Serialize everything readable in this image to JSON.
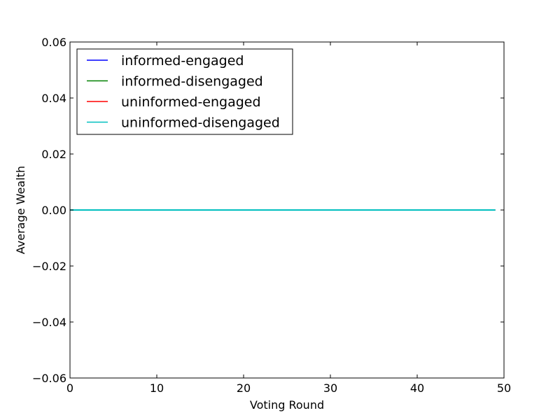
{
  "chart_data": {
    "type": "line",
    "title": "",
    "xlabel": "Voting Round",
    "ylabel": "Average Wealth",
    "xlim": [
      0,
      50
    ],
    "ylim": [
      -0.06,
      0.06
    ],
    "xticks": [
      0,
      10,
      20,
      30,
      40,
      50
    ],
    "xtick_labels": [
      "0",
      "10",
      "20",
      "30",
      "40",
      "50"
    ],
    "yticks": [
      -0.06,
      -0.04,
      -0.02,
      0.0,
      0.02,
      0.04,
      0.06
    ],
    "ytick_labels": [
      "−0.06",
      "−0.04",
      "−0.02",
      "0.00",
      "0.02",
      "0.04",
      "0.06"
    ],
    "grid": false,
    "legend_position": "top-left",
    "x": [
      0,
      1,
      2,
      3,
      4,
      5,
      6,
      7,
      8,
      9,
      10,
      11,
      12,
      13,
      14,
      15,
      16,
      17,
      18,
      19,
      20,
      21,
      22,
      23,
      24,
      25,
      26,
      27,
      28,
      29,
      30,
      31,
      32,
      33,
      34,
      35,
      36,
      37,
      38,
      39,
      40,
      41,
      42,
      43,
      44,
      45,
      46,
      47,
      48,
      49
    ],
    "series": [
      {
        "name": "informed-engaged",
        "color": "#0000ff",
        "values": [
          0,
          0,
          0,
          0,
          0,
          0,
          0,
          0,
          0,
          0,
          0,
          0,
          0,
          0,
          0,
          0,
          0,
          0,
          0,
          0,
          0,
          0,
          0,
          0,
          0,
          0,
          0,
          0,
          0,
          0,
          0,
          0,
          0,
          0,
          0,
          0,
          0,
          0,
          0,
          0,
          0,
          0,
          0,
          0,
          0,
          0,
          0,
          0,
          0,
          0
        ]
      },
      {
        "name": "informed-disengaged",
        "color": "#008000",
        "values": [
          0,
          0,
          0,
          0,
          0,
          0,
          0,
          0,
          0,
          0,
          0,
          0,
          0,
          0,
          0,
          0,
          0,
          0,
          0,
          0,
          0,
          0,
          0,
          0,
          0,
          0,
          0,
          0,
          0,
          0,
          0,
          0,
          0,
          0,
          0,
          0,
          0,
          0,
          0,
          0,
          0,
          0,
          0,
          0,
          0,
          0,
          0,
          0,
          0,
          0
        ]
      },
      {
        "name": "uninformed-engaged",
        "color": "#ff0000",
        "values": [
          0,
          0,
          0,
          0,
          0,
          0,
          0,
          0,
          0,
          0,
          0,
          0,
          0,
          0,
          0,
          0,
          0,
          0,
          0,
          0,
          0,
          0,
          0,
          0,
          0,
          0,
          0,
          0,
          0,
          0,
          0,
          0,
          0,
          0,
          0,
          0,
          0,
          0,
          0,
          0,
          0,
          0,
          0,
          0,
          0,
          0,
          0,
          0,
          0,
          0
        ]
      },
      {
        "name": "uninformed-disengaged",
        "color": "#00bfbf",
        "values": [
          0,
          0,
          0,
          0,
          0,
          0,
          0,
          0,
          0,
          0,
          0,
          0,
          0,
          0,
          0,
          0,
          0,
          0,
          0,
          0,
          0,
          0,
          0,
          0,
          0,
          0,
          0,
          0,
          0,
          0,
          0,
          0,
          0,
          0,
          0,
          0,
          0,
          0,
          0,
          0,
          0,
          0,
          0,
          0,
          0,
          0,
          0,
          0,
          0,
          0
        ]
      }
    ]
  }
}
